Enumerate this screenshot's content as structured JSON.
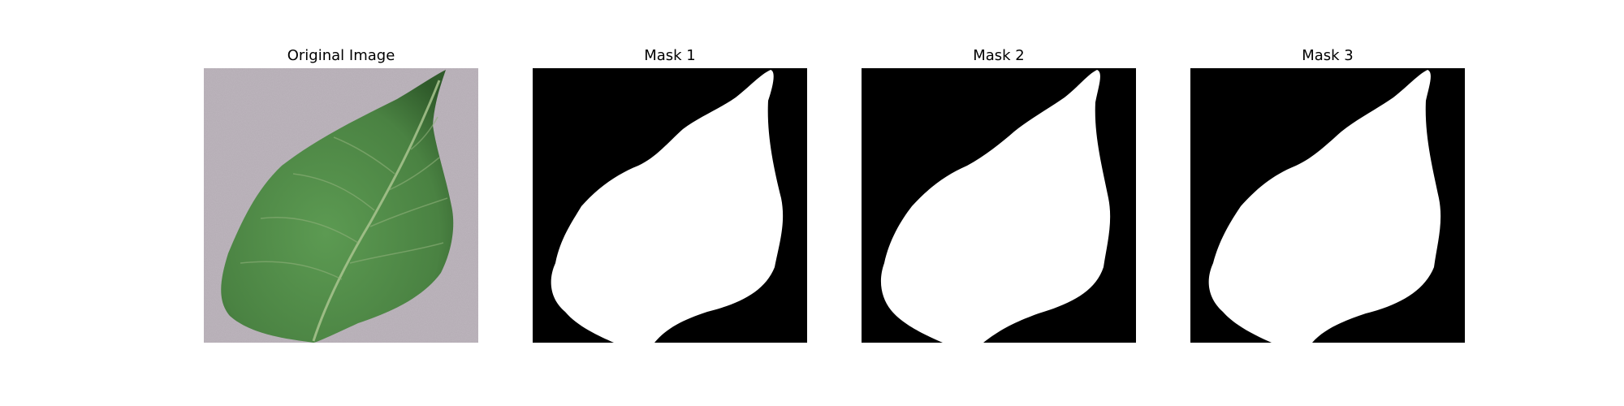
{
  "panels": [
    {
      "title": "Original Image"
    },
    {
      "title": "Mask 1"
    },
    {
      "title": "Mask 2"
    },
    {
      "title": "Mask 3"
    }
  ],
  "colors": {
    "background_gray": "#b4abb4",
    "leaf_green": "#4f8a45",
    "leaf_dark": "#2f5a2a",
    "vein": "#a9c48f",
    "mask_fg": "#ffffff",
    "mask_bg": "#000000"
  }
}
